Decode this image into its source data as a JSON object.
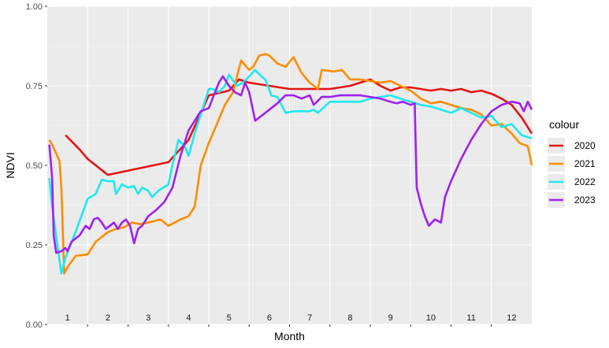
{
  "chart_data": {
    "type": "line",
    "xlabel": "Month",
    "ylabel": "NDVI",
    "ylim": [
      0,
      1
    ],
    "xlim": [
      0.5,
      12.5
    ],
    "y_ticks": [
      "0.00",
      "0.25",
      "0.50",
      "0.75",
      "1.00"
    ],
    "y_tick_values": [
      0,
      0.25,
      0.5,
      0.75,
      1.0
    ],
    "month_labels": [
      "1",
      "2",
      "3",
      "4",
      "5",
      "6",
      "7",
      "8",
      "9",
      "10",
      "11",
      "12"
    ],
    "grid": true,
    "legend": {
      "title": "colour",
      "position": "right"
    },
    "series": [
      {
        "name": "2020",
        "color": "#e41414",
        "points": [
          [
            0.95,
            0.595
          ],
          [
            1.3,
            0.55
          ],
          [
            1.5,
            0.52
          ],
          [
            2.0,
            0.47
          ],
          [
            3.5,
            0.51
          ],
          [
            4.0,
            0.58
          ],
          [
            4.5,
            0.72
          ],
          [
            5.0,
            0.735
          ],
          [
            5.25,
            0.77
          ],
          [
            5.5,
            0.76
          ],
          [
            6.0,
            0.75
          ],
          [
            6.5,
            0.74
          ],
          [
            7.0,
            0.74
          ],
          [
            7.5,
            0.74
          ],
          [
            8.0,
            0.75
          ],
          [
            8.5,
            0.77
          ],
          [
            8.75,
            0.75
          ],
          [
            9.0,
            0.735
          ],
          [
            9.25,
            0.745
          ],
          [
            9.5,
            0.745
          ],
          [
            9.75,
            0.74
          ],
          [
            10.0,
            0.735
          ],
          [
            10.25,
            0.74
          ],
          [
            10.5,
            0.735
          ],
          [
            10.75,
            0.74
          ],
          [
            11.0,
            0.73
          ],
          [
            11.25,
            0.735
          ],
          [
            11.5,
            0.725
          ],
          [
            11.75,
            0.71
          ],
          [
            12.0,
            0.69
          ],
          [
            12.25,
            0.65
          ],
          [
            12.5,
            0.6
          ]
        ]
      },
      {
        "name": "2021",
        "color": "#ff8c00",
        "points": [
          [
            0.55,
            0.58
          ],
          [
            0.62,
            0.565
          ],
          [
            0.8,
            0.515
          ],
          [
            0.85,
            0.43
          ],
          [
            0.92,
            0.16
          ],
          [
            1.0,
            0.18
          ],
          [
            1.2,
            0.215
          ],
          [
            1.5,
            0.22
          ],
          [
            1.7,
            0.26
          ],
          [
            2.0,
            0.29
          ],
          [
            2.2,
            0.3
          ],
          [
            2.4,
            0.305
          ],
          [
            2.6,
            0.32
          ],
          [
            2.8,
            0.315
          ],
          [
            3.0,
            0.32
          ],
          [
            3.3,
            0.33
          ],
          [
            3.5,
            0.31
          ],
          [
            3.8,
            0.33
          ],
          [
            4.0,
            0.34
          ],
          [
            4.15,
            0.37
          ],
          [
            4.3,
            0.5
          ],
          [
            4.5,
            0.57
          ],
          [
            4.7,
            0.63
          ],
          [
            4.9,
            0.69
          ],
          [
            5.1,
            0.73
          ],
          [
            5.3,
            0.83
          ],
          [
            5.5,
            0.8
          ],
          [
            5.6,
            0.81
          ],
          [
            5.75,
            0.845
          ],
          [
            5.9,
            0.85
          ],
          [
            6.0,
            0.845
          ],
          [
            6.2,
            0.82
          ],
          [
            6.4,
            0.81
          ],
          [
            6.6,
            0.84
          ],
          [
            6.8,
            0.79
          ],
          [
            7.0,
            0.76
          ],
          [
            7.2,
            0.74
          ],
          [
            7.3,
            0.8
          ],
          [
            7.6,
            0.795
          ],
          [
            7.8,
            0.8
          ],
          [
            8.0,
            0.77
          ],
          [
            8.25,
            0.77
          ],
          [
            8.5,
            0.765
          ],
          [
            8.75,
            0.76
          ],
          [
            9.0,
            0.765
          ],
          [
            9.25,
            0.75
          ],
          [
            9.5,
            0.735
          ],
          [
            9.75,
            0.71
          ],
          [
            10.0,
            0.695
          ],
          [
            10.25,
            0.7
          ],
          [
            10.5,
            0.69
          ],
          [
            10.75,
            0.68
          ],
          [
            11.0,
            0.675
          ],
          [
            11.25,
            0.66
          ],
          [
            11.5,
            0.625
          ],
          [
            11.75,
            0.63
          ],
          [
            12.0,
            0.6
          ],
          [
            12.2,
            0.57
          ],
          [
            12.4,
            0.56
          ],
          [
            12.5,
            0.5
          ]
        ]
      },
      {
        "name": "2022",
        "color": "#1ee8f0",
        "points": [
          [
            0.55,
            0.46
          ],
          [
            0.62,
            0.37
          ],
          [
            0.75,
            0.25
          ],
          [
            0.85,
            0.16
          ],
          [
            0.95,
            0.21
          ],
          [
            1.2,
            0.29
          ],
          [
            1.5,
            0.395
          ],
          [
            1.7,
            0.41
          ],
          [
            1.85,
            0.455
          ],
          [
            2.0,
            0.45
          ],
          [
            2.15,
            0.45
          ],
          [
            2.2,
            0.41
          ],
          [
            2.35,
            0.44
          ],
          [
            2.5,
            0.43
          ],
          [
            2.65,
            0.435
          ],
          [
            2.75,
            0.41
          ],
          [
            2.85,
            0.43
          ],
          [
            3.0,
            0.42
          ],
          [
            3.1,
            0.4
          ],
          [
            3.25,
            0.42
          ],
          [
            3.5,
            0.44
          ],
          [
            3.6,
            0.5
          ],
          [
            3.75,
            0.58
          ],
          [
            3.9,
            0.56
          ],
          [
            4.0,
            0.53
          ],
          [
            4.15,
            0.6
          ],
          [
            4.3,
            0.66
          ],
          [
            4.5,
            0.74
          ],
          [
            4.6,
            0.74
          ],
          [
            4.75,
            0.73
          ],
          [
            4.9,
            0.75
          ],
          [
            5.0,
            0.785
          ],
          [
            5.2,
            0.75
          ],
          [
            5.35,
            0.76
          ],
          [
            5.5,
            0.78
          ],
          [
            5.65,
            0.8
          ],
          [
            5.8,
            0.78
          ],
          [
            5.9,
            0.77
          ],
          [
            6.05,
            0.72
          ],
          [
            6.2,
            0.715
          ],
          [
            6.4,
            0.665
          ],
          [
            6.6,
            0.67
          ],
          [
            6.8,
            0.67
          ],
          [
            7.0,
            0.67
          ],
          [
            7.1,
            0.675
          ],
          [
            7.2,
            0.665
          ],
          [
            7.5,
            0.7
          ],
          [
            7.75,
            0.7
          ],
          [
            8.0,
            0.7
          ],
          [
            8.25,
            0.7
          ],
          [
            8.5,
            0.71
          ],
          [
            8.75,
            0.715
          ],
          [
            9.0,
            0.72
          ],
          [
            9.25,
            0.71
          ],
          [
            9.5,
            0.7
          ],
          [
            9.75,
            0.69
          ],
          [
            10.0,
            0.685
          ],
          [
            10.25,
            0.675
          ],
          [
            10.5,
            0.665
          ],
          [
            10.75,
            0.68
          ],
          [
            11.0,
            0.665
          ],
          [
            11.25,
            0.65
          ],
          [
            11.5,
            0.655
          ],
          [
            11.75,
            0.62
          ],
          [
            12.0,
            0.63
          ],
          [
            12.25,
            0.595
          ],
          [
            12.5,
            0.585
          ]
        ]
      },
      {
        "name": "2023",
        "color": "#a020f0",
        "points": [
          [
            0.55,
            0.565
          ],
          [
            0.62,
            0.46
          ],
          [
            0.66,
            0.28
          ],
          [
            0.72,
            0.225
          ],
          [
            0.85,
            0.23
          ],
          [
            0.95,
            0.24
          ],
          [
            1.0,
            0.23
          ],
          [
            1.1,
            0.26
          ],
          [
            1.3,
            0.28
          ],
          [
            1.45,
            0.31
          ],
          [
            1.55,
            0.3
          ],
          [
            1.65,
            0.33
          ],
          [
            1.75,
            0.335
          ],
          [
            1.85,
            0.32
          ],
          [
            1.95,
            0.3
          ],
          [
            2.05,
            0.31
          ],
          [
            2.15,
            0.32
          ],
          [
            2.25,
            0.3
          ],
          [
            2.35,
            0.32
          ],
          [
            2.45,
            0.33
          ],
          [
            2.55,
            0.31
          ],
          [
            2.65,
            0.255
          ],
          [
            2.75,
            0.3
          ],
          [
            2.85,
            0.31
          ],
          [
            3.0,
            0.34
          ],
          [
            3.2,
            0.36
          ],
          [
            3.4,
            0.385
          ],
          [
            3.6,
            0.43
          ],
          [
            3.8,
            0.53
          ],
          [
            4.0,
            0.61
          ],
          [
            4.15,
            0.64
          ],
          [
            4.3,
            0.67
          ],
          [
            4.5,
            0.68
          ],
          [
            4.75,
            0.76
          ],
          [
            4.85,
            0.78
          ],
          [
            5.0,
            0.75
          ],
          [
            5.15,
            0.73
          ],
          [
            5.3,
            0.72
          ],
          [
            5.4,
            0.76
          ],
          [
            5.5,
            0.73
          ],
          [
            5.65,
            0.64
          ],
          [
            5.8,
            0.655
          ],
          [
            6.0,
            0.675
          ],
          [
            6.2,
            0.695
          ],
          [
            6.4,
            0.72
          ],
          [
            6.6,
            0.72
          ],
          [
            6.8,
            0.71
          ],
          [
            7.0,
            0.72
          ],
          [
            7.1,
            0.69
          ],
          [
            7.3,
            0.715
          ],
          [
            7.5,
            0.715
          ],
          [
            7.75,
            0.72
          ],
          [
            8.0,
            0.72
          ],
          [
            8.25,
            0.72
          ],
          [
            8.5,
            0.715
          ],
          [
            8.75,
            0.71
          ],
          [
            9.0,
            0.7
          ],
          [
            9.15,
            0.695
          ],
          [
            9.3,
            0.7
          ],
          [
            9.5,
            0.69
          ],
          [
            9.6,
            0.695
          ],
          [
            9.65,
            0.43
          ],
          [
            9.75,
            0.38
          ],
          [
            9.85,
            0.34
          ],
          [
            9.95,
            0.31
          ],
          [
            10.1,
            0.33
          ],
          [
            10.25,
            0.32
          ],
          [
            10.35,
            0.4
          ],
          [
            10.5,
            0.45
          ],
          [
            10.75,
            0.52
          ],
          [
            11.0,
            0.58
          ],
          [
            11.25,
            0.63
          ],
          [
            11.5,
            0.67
          ],
          [
            11.75,
            0.69
          ],
          [
            12.0,
            0.7
          ],
          [
            12.2,
            0.695
          ],
          [
            12.3,
            0.67
          ],
          [
            12.4,
            0.7
          ],
          [
            12.5,
            0.675
          ]
        ]
      }
    ]
  }
}
